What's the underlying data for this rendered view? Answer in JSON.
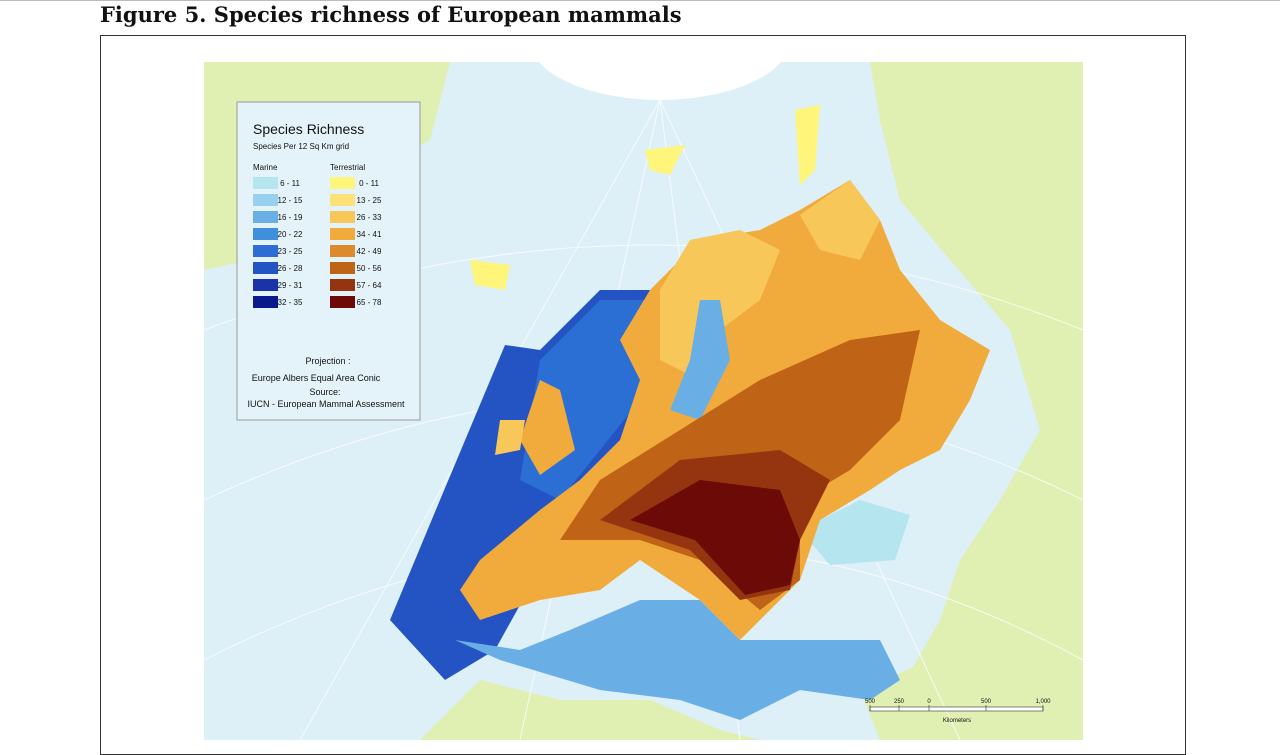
{
  "header": {
    "title": "Figure 5. Species richness of European mammals"
  },
  "legend": {
    "title": "Species Richness",
    "subtitle": "Species Per 12 Sq Km grid",
    "marine": {
      "heading": "Marine",
      "items": [
        {
          "label": "6 - 11",
          "color": "#b5e6f0"
        },
        {
          "label": "12 - 15",
          "color": "#99d0ef"
        },
        {
          "label": "16 - 19",
          "color": "#6aaee6"
        },
        {
          "label": "20 - 22",
          "color": "#3f8fdc"
        },
        {
          "label": "23 - 25",
          "color": "#2b6fd4"
        },
        {
          "label": "26 - 28",
          "color": "#2453c4"
        },
        {
          "label": "29 - 31",
          "color": "#1b33a8"
        },
        {
          "label": "32 - 35",
          "color": "#0b1a8a"
        }
      ]
    },
    "terrestrial": {
      "heading": "Terrestrial",
      "items": [
        {
          "label": "0 - 11",
          "color": "#fff57a"
        },
        {
          "label": "13 - 25",
          "color": "#fde27a"
        },
        {
          "label": "26 - 33",
          "color": "#f8c75a"
        },
        {
          "label": "34 - 41",
          "color": "#f0ab3c"
        },
        {
          "label": "42 - 49",
          "color": "#dc8a2c"
        },
        {
          "label": "50 - 56",
          "color": "#bf6416"
        },
        {
          "label": "57 - 64",
          "color": "#943510"
        },
        {
          "label": "65 - 78",
          "color": "#6b0a06"
        }
      ]
    }
  },
  "notes": {
    "projection_label": "Projection :",
    "projection": "Europe Albers Equal Area Conic",
    "source_label": "Source:",
    "source": "IUCN - European Mammal Assessment"
  },
  "scale_bar": {
    "ticks": [
      "500",
      "250",
      "0",
      "500",
      "1,000"
    ],
    "unit": "Kilometers"
  }
}
